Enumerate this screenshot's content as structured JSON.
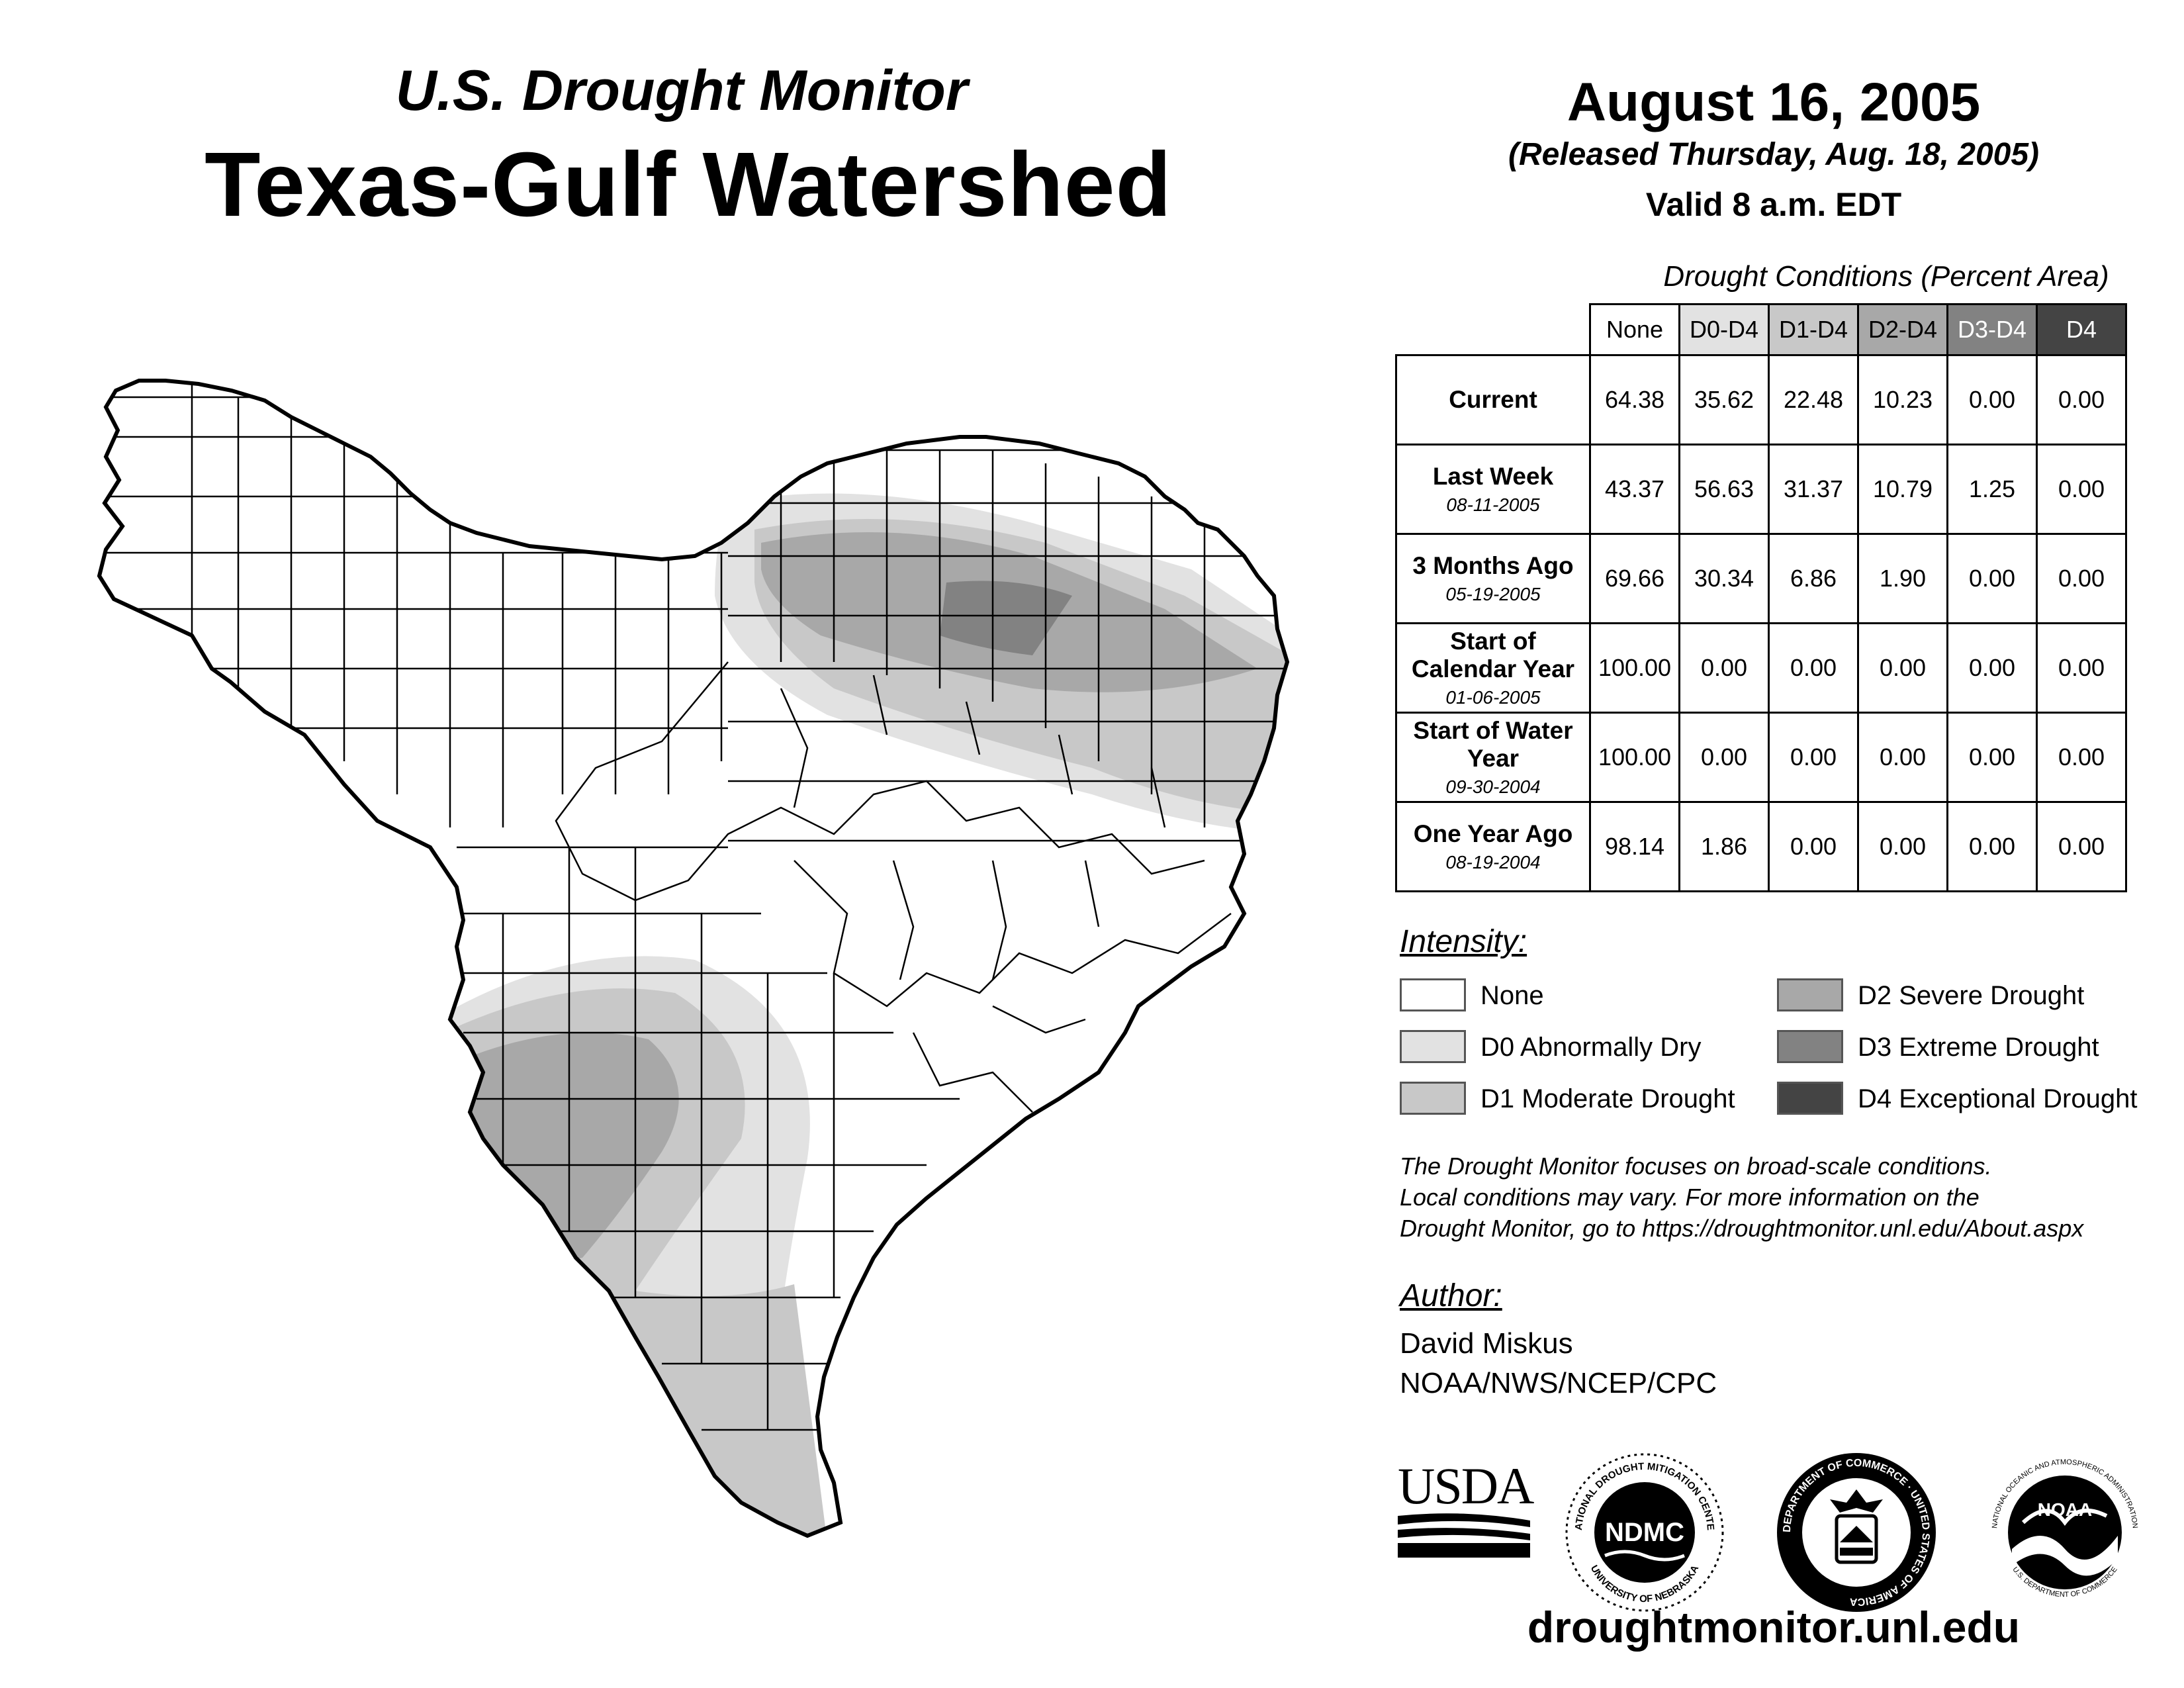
{
  "header": {
    "subtitle": "U.S. Drought Monitor",
    "title": "Texas-Gulf Watershed",
    "date": "August 16, 2005",
    "released": "(Released Thursday, Aug. 18, 2005)",
    "valid": "Valid 8 a.m. EDT"
  },
  "table": {
    "caption": "Drought Conditions (Percent Area)",
    "columns": [
      "None",
      "D0-D4",
      "D1-D4",
      "D2-D4",
      "D3-D4",
      "D4"
    ],
    "rows": [
      {
        "label": "Current",
        "date": "",
        "values": [
          "64.38",
          "35.62",
          "22.48",
          "10.23",
          "0.00",
          "0.00"
        ]
      },
      {
        "label": "Last Week",
        "date": "08-11-2005",
        "values": [
          "43.37",
          "56.63",
          "31.37",
          "10.79",
          "1.25",
          "0.00"
        ]
      },
      {
        "label": "3 Months Ago",
        "date": "05-19-2005",
        "values": [
          "69.66",
          "30.34",
          "6.86",
          "1.90",
          "0.00",
          "0.00"
        ]
      },
      {
        "label": "Start of Calendar Year",
        "date": "01-06-2005",
        "values": [
          "100.00",
          "0.00",
          "0.00",
          "0.00",
          "0.00",
          "0.00"
        ]
      },
      {
        "label": "Start of Water Year",
        "date": "09-30-2004",
        "values": [
          "100.00",
          "0.00",
          "0.00",
          "0.00",
          "0.00",
          "0.00"
        ]
      },
      {
        "label": "One Year Ago",
        "date": "08-19-2004",
        "values": [
          "98.14",
          "1.86",
          "0.00",
          "0.00",
          "0.00",
          "0.00"
        ]
      }
    ]
  },
  "legend": {
    "heading": "Intensity:",
    "items": [
      {
        "label": "None",
        "color": "#ffffff"
      },
      {
        "label": "D0 Abnormally Dry",
        "color": "#e2e2e2"
      },
      {
        "label": "D1 Moderate Drought",
        "color": "#c8c8c8"
      },
      {
        "label": "D2 Severe Drought",
        "color": "#a8a8a8"
      },
      {
        "label": "D3 Extreme Drought",
        "color": "#828282"
      },
      {
        "label": "D4 Exceptional Drought",
        "color": "#444444"
      }
    ]
  },
  "note": {
    "line1": "The Drought Monitor focuses on broad-scale conditions.",
    "line2": "Local conditions may vary. For more information on the",
    "line3": "Drought Monitor, go to https://droughtmonitor.unl.edu/About.aspx"
  },
  "author": {
    "heading": "Author:",
    "name": "David Miskus",
    "org": "NOAA/NWS/NCEP/CPC"
  },
  "logos": {
    "usda": "USDA",
    "ndmc": "NDMC",
    "ndmc_ring_top": "NATIONAL DROUGHT MITIGATION CENTER",
    "ndmc_ring_bottom": "UNIVERSITY OF NEBRASKA",
    "doc_ring": "DEPARTMENT OF COMMERCE · UNITED STATES OF AMERICA",
    "noaa": "NOAA",
    "noaa_ring_top": "NATIONAL OCEANIC AND ATMOSPHERIC ADMINISTRATION",
    "noaa_ring_bottom": "U.S. DEPARTMENT OF COMMERCE"
  },
  "footer": {
    "url": "droughtmonitor.unl.edu"
  }
}
